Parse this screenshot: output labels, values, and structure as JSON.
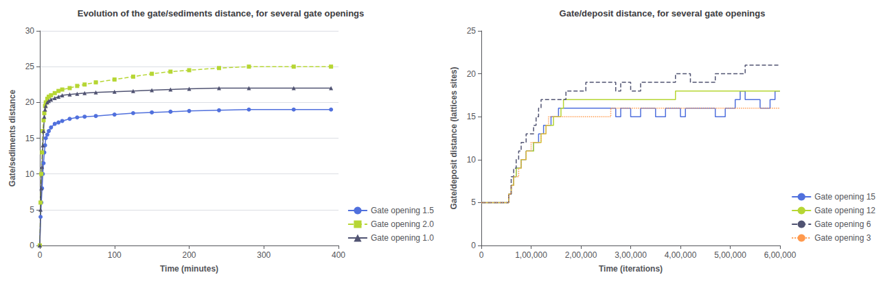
{
  "chart_data": [
    {
      "type": "line",
      "title": "Evolution of the gate/sediments distance, for several gate openings",
      "xlabel": "Time (minutes)",
      "ylabel": "Gate/sediments distance",
      "xlim": [
        0,
        400
      ],
      "ylim": [
        0,
        30
      ],
      "xticks": [
        0,
        100,
        200,
        300,
        400
      ],
      "yticks": [
        0,
        5,
        10,
        15,
        20,
        25,
        30
      ],
      "grid": true,
      "legend": "lower right",
      "x": [
        0,
        1,
        2,
        3,
        4,
        5,
        6,
        7,
        8,
        10,
        12,
        15,
        20,
        25,
        30,
        40,
        50,
        60,
        75,
        100,
        125,
        150,
        175,
        200,
        240,
        280,
        340,
        390
      ],
      "series": [
        {
          "name": "Gate opening 1.5",
          "marker": "circle",
          "line_style": "solid",
          "values": [
            0,
            4,
            6,
            8,
            10,
            11.5,
            13,
            14,
            15,
            15.5,
            16,
            16.5,
            17,
            17.2,
            17.4,
            17.7,
            17.9,
            18.0,
            18.1,
            18.3,
            18.5,
            18.6,
            18.7,
            18.8,
            18.9,
            19.0,
            19.0,
            19.0
          ]
        },
        {
          "name": "Gate opening 2.0",
          "marker": "square",
          "line_style": "dashed",
          "values": [
            0,
            6,
            10,
            13,
            16,
            17.5,
            18.5,
            19.5,
            20,
            20.5,
            20.8,
            21,
            21.3,
            21.6,
            21.8,
            22.0,
            22.3,
            22.5,
            22.8,
            23.2,
            23.6,
            24.0,
            24.3,
            24.5,
            24.8,
            25.0,
            25.0,
            25.0
          ]
        },
        {
          "name": "Gate opening 1.0",
          "marker": "triangle",
          "line_style": "solid",
          "values": [
            0,
            5,
            8,
            11,
            14,
            16,
            18,
            19,
            19.5,
            20,
            20.2,
            20.4,
            20.6,
            20.8,
            21.0,
            21.1,
            21.2,
            21.3,
            21.4,
            21.5,
            21.6,
            21.7,
            21.8,
            21.9,
            22.0,
            22.0,
            22.0,
            22.0
          ]
        }
      ]
    },
    {
      "type": "step",
      "title": "Gate/deposit distance, for several gate openings",
      "xlabel": "Time (iterations)",
      "ylabel": "Gate/deposit distance (lattices sites)",
      "xlim": [
        0,
        600000
      ],
      "ylim": [
        0,
        25
      ],
      "xticks": [
        0,
        {
          "value": 100000,
          "label": "1,00,000"
        },
        {
          "value": 200000,
          "label": "2,00,000"
        },
        {
          "value": 300000,
          "label": "3,00,000"
        },
        {
          "value": 400000,
          "label": "4,00,000"
        },
        {
          "value": 500000,
          "label": "5,00,000"
        },
        {
          "value": 600000,
          "label": "6,00,000"
        }
      ],
      "yticks": [
        0,
        5,
        10,
        15,
        20,
        25
      ],
      "grid": false,
      "legend": "lower right",
      "x": [
        0,
        10000,
        20000,
        30000,
        40000,
        50000,
        55000,
        60000,
        65000,
        70000,
        75000,
        80000,
        85000,
        90000,
        95000,
        100000,
        105000,
        110000,
        115000,
        120000,
        125000,
        130000,
        135000,
        140000,
        145000,
        150000,
        155000,
        160000,
        165000,
        170000,
        175000,
        180000,
        190000,
        200000,
        210000,
        220000,
        230000,
        240000,
        250000,
        260000,
        270000,
        280000,
        290000,
        300000,
        310000,
        320000,
        330000,
        340000,
        350000,
        360000,
        370000,
        380000,
        390000,
        400000,
        410000,
        420000,
        430000,
        440000,
        450000,
        460000,
        470000,
        480000,
        490000,
        500000,
        510000,
        520000,
        530000,
        540000,
        550000,
        560000,
        570000,
        580000,
        590000,
        600000
      ],
      "series": [
        {
          "name": "Gate opening 15",
          "line_style": "solid",
          "values": [
            5,
            5,
            5,
            5,
            5,
            5,
            6,
            7,
            8,
            9,
            9,
            10,
            10,
            11,
            11,
            11,
            12,
            12,
            13,
            13,
            14,
            14,
            14,
            15,
            15,
            15,
            16,
            16,
            16,
            16,
            16,
            16,
            16,
            16,
            16,
            16,
            16,
            16,
            16,
            16,
            15,
            16,
            16,
            15,
            15,
            16,
            16,
            16,
            15,
            15,
            16,
            16,
            16,
            15,
            16,
            16,
            16,
            16,
            16,
            16,
            15,
            15,
            16,
            16,
            17,
            18,
            17,
            17,
            17,
            16,
            16,
            17,
            18,
            18
          ]
        },
        {
          "name": "Gate opening 12",
          "line_style": "solid",
          "values": [
            5,
            5,
            5,
            5,
            5,
            5,
            6,
            7,
            8,
            9,
            9,
            10,
            10,
            11,
            11,
            11,
            12,
            12,
            12,
            13,
            13,
            14,
            14,
            14,
            15,
            15,
            15,
            16,
            17,
            17,
            17,
            17,
            17,
            17,
            17,
            17,
            17,
            17,
            17,
            17,
            17,
            17,
            17,
            17,
            17,
            17,
            17,
            17,
            17,
            17,
            17,
            17,
            18,
            18,
            18,
            18,
            18,
            18,
            18,
            18,
            18,
            18,
            18,
            18,
            18,
            18,
            18,
            18,
            18,
            18,
            18,
            18,
            18,
            18
          ]
        },
        {
          "name": "Gate opening 6",
          "line_style": "dashed",
          "values": [
            5,
            5,
            5,
            5,
            5,
            5,
            6,
            8,
            9,
            10,
            11,
            12,
            12,
            13,
            13,
            13,
            14,
            15,
            16,
            17,
            17,
            17,
            17,
            17,
            17,
            17,
            17,
            17,
            17,
            18,
            18,
            18,
            18,
            18,
            19,
            19,
            19,
            19,
            19,
            19,
            18,
            19,
            19,
            18,
            18,
            19,
            19,
            19,
            19,
            19,
            19,
            19,
            20,
            20,
            20,
            19,
            19,
            19,
            19,
            19,
            20,
            20,
            20,
            20,
            20,
            20,
            21,
            21,
            21,
            21,
            21,
            21,
            21,
            21
          ]
        },
        {
          "name": "Gate opening 3",
          "line_style": "dotted",
          "values": [
            5,
            5,
            5,
            5,
            5,
            5,
            6,
            7,
            8,
            8,
            9,
            10,
            10,
            11,
            11,
            12,
            12,
            12,
            12,
            13,
            13,
            14,
            15,
            15,
            15,
            15,
            15,
            15,
            15,
            15,
            15,
            15,
            15,
            15,
            15,
            15,
            15,
            15,
            15,
            16,
            16,
            16,
            16,
            16,
            16,
            16,
            16,
            16,
            16,
            16,
            16,
            16,
            16,
            16,
            16,
            16,
            16,
            16,
            16,
            16,
            16,
            16,
            16,
            16,
            16,
            16,
            16,
            16,
            16,
            16,
            16,
            16,
            16,
            16
          ]
        }
      ]
    }
  ]
}
